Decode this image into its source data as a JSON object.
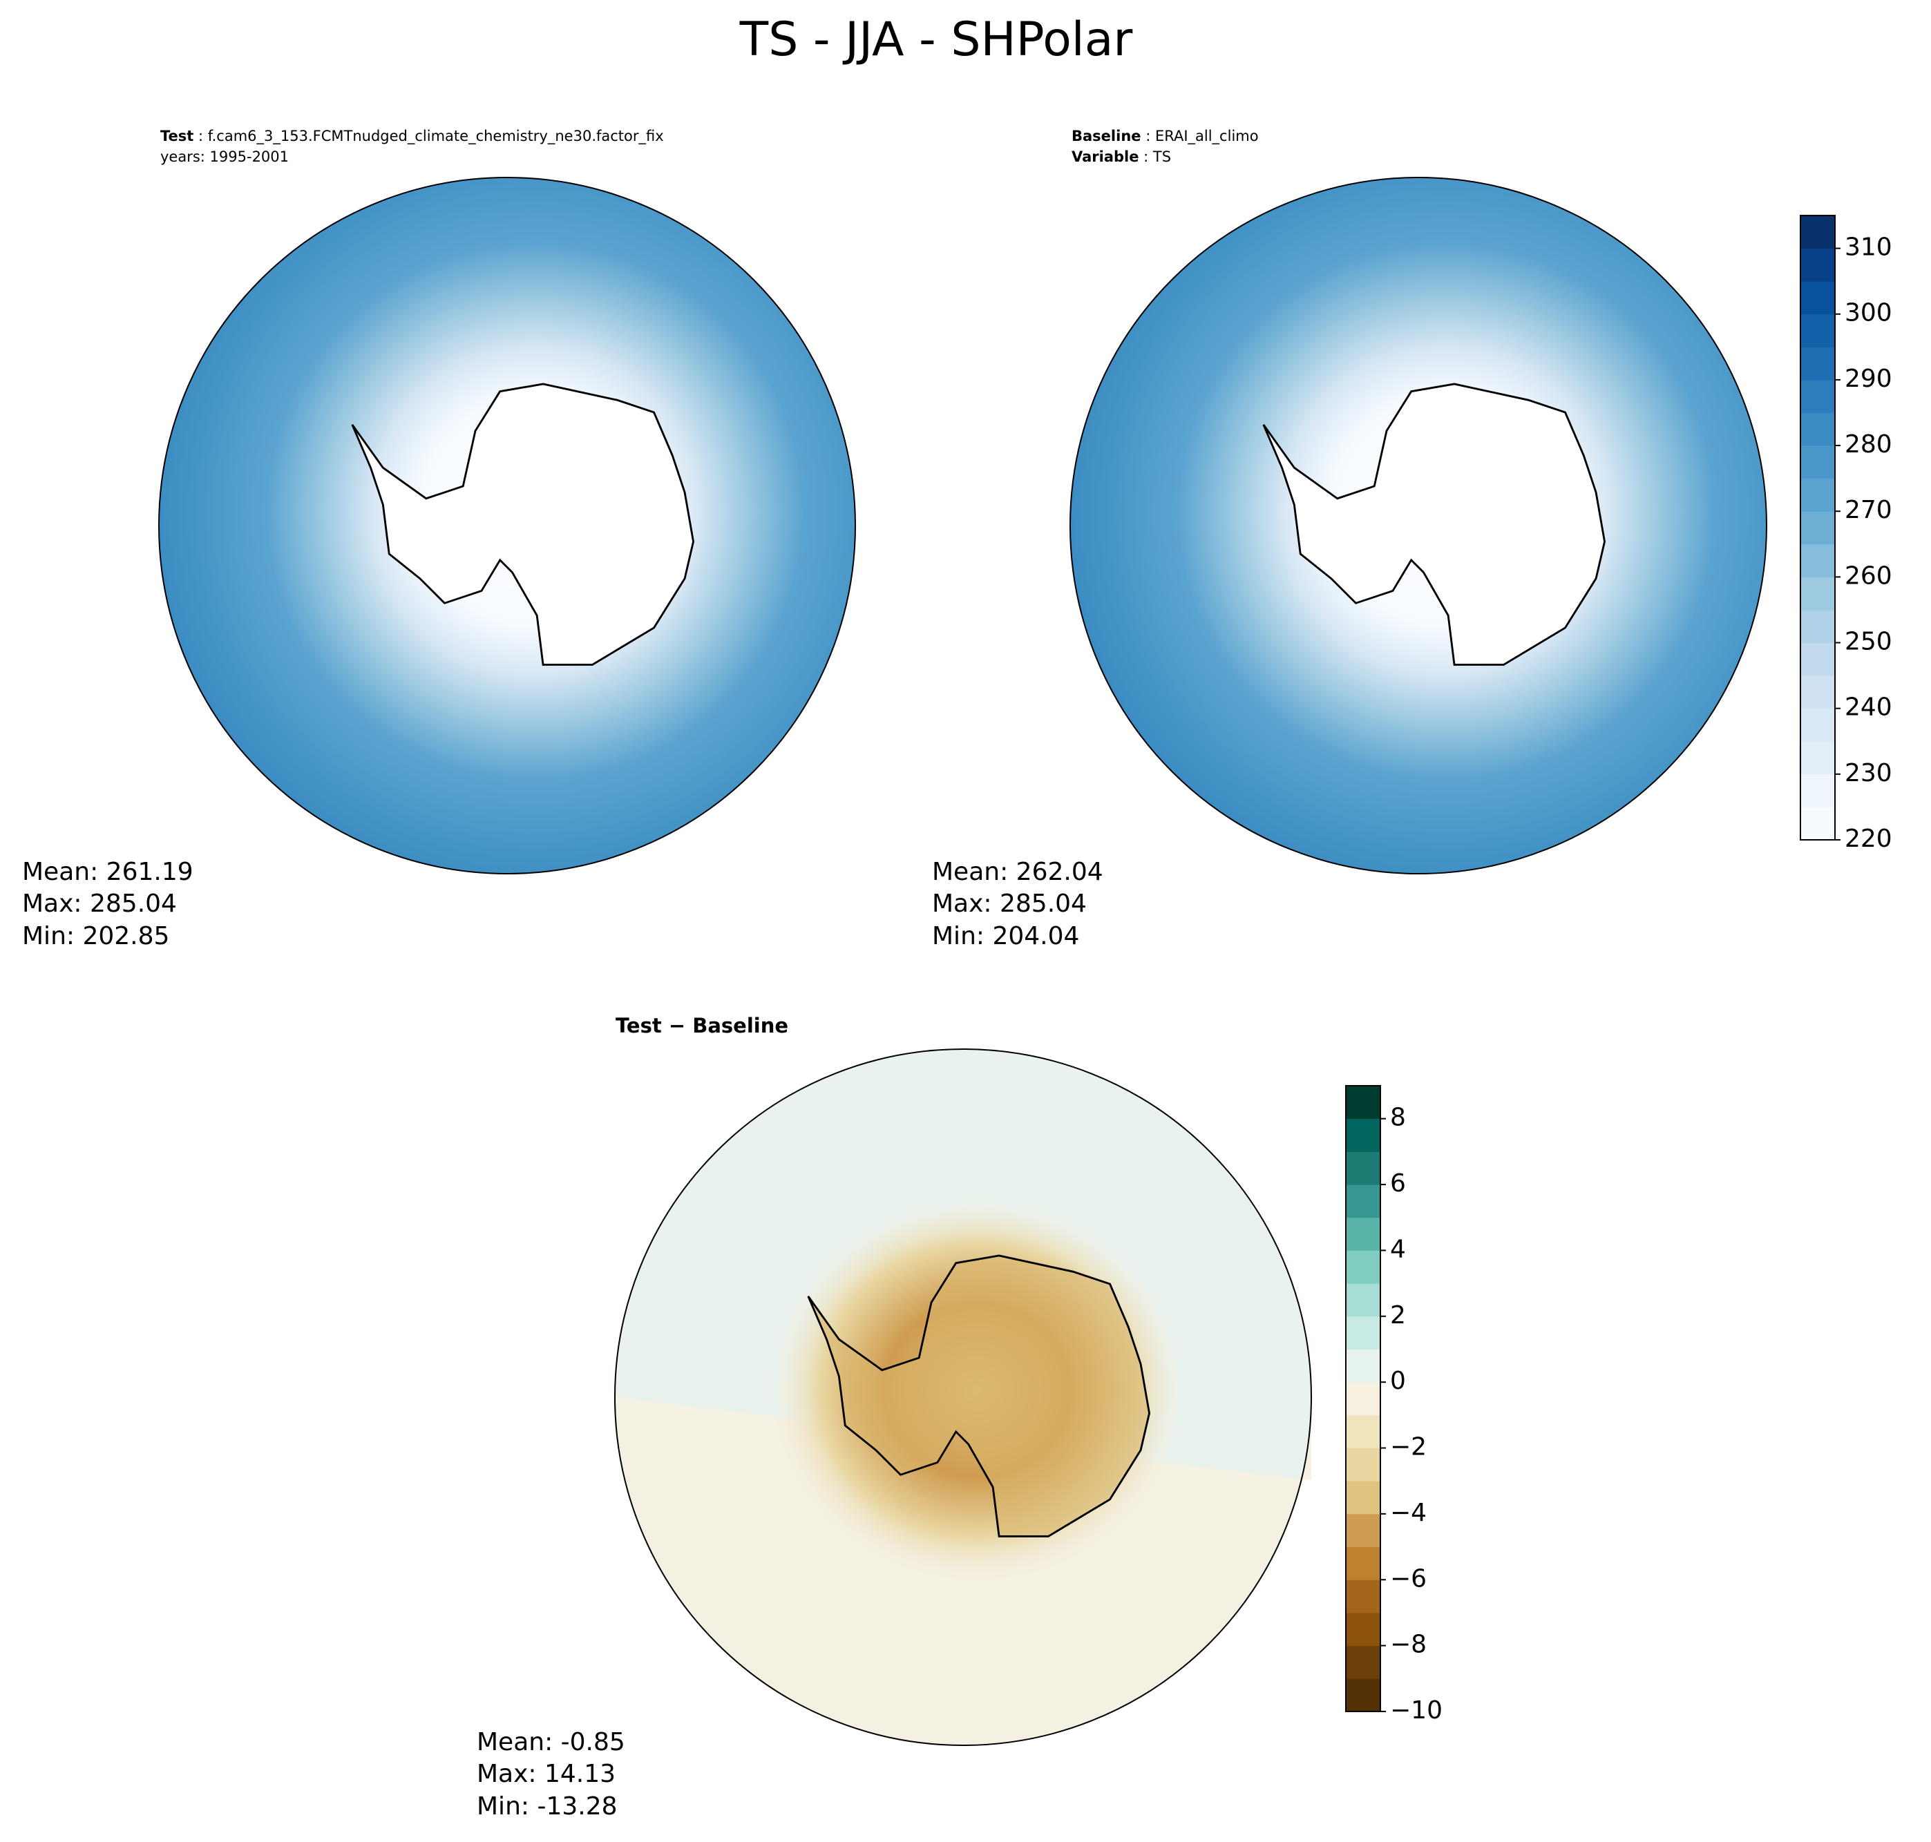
{
  "title": "TS - JJA - SHPolar",
  "panels": [
    {
      "key": "Test",
      "value": "f.cam6_3_153.FCMTnudged_climate_chemistry_ne30.factor_fix",
      "line2": "years: 1995-2001",
      "stats": [
        "Mean: 261.19",
        "Max: 285.04",
        "Min: 202.85"
      ]
    },
    {
      "key": "Baseline",
      "value": "ERAI_all_climo",
      "key2": "Variable",
      "value2": "TS",
      "stats": [
        "Mean: 262.04",
        "Max: 285.04",
        "Min: 204.04"
      ]
    },
    {
      "heading": "Test − Baseline",
      "stats": [
        "Mean: -0.85",
        "Max: 14.13",
        "Min: -13.28"
      ]
    }
  ],
  "colorbars": [
    {
      "lim": [
        220,
        315
      ],
      "colors": [
        "#f7fbff",
        "#eef5fc",
        "#e3eef9",
        "#d9e8f5",
        "#cfe1f2",
        "#c1d9ed",
        "#b0d2e8",
        "#9ecae1",
        "#87bddc",
        "#6daed5",
        "#5ca4d0",
        "#4a98c9",
        "#3a8bc2",
        "#2c7dbb",
        "#1f6eb3",
        "#1361a9",
        "#08519c",
        "#08418a",
        "#08306b"
      ],
      "ticks": [
        220,
        230,
        240,
        250,
        260,
        270,
        280,
        290,
        300,
        310
      ]
    },
    {
      "lim": [
        -10,
        9
      ],
      "colors": [
        "#543005",
        "#6d3f0a",
        "#8c510a",
        "#a5661b",
        "#bf812d",
        "#cf9c51",
        "#dfc27d",
        "#e8d59f",
        "#f1e4bd",
        "#f5f0e0",
        "#e6f2ef",
        "#c7eae5",
        "#a8ddd4",
        "#80cdc1",
        "#5ab4a9",
        "#35978f",
        "#1d7d74",
        "#01665e",
        "#003c30"
      ],
      "ticks": [
        {
          "value": -10,
          "label": "−10"
        },
        {
          "value": -8,
          "label": "−8"
        },
        {
          "value": -6,
          "label": "−6"
        },
        {
          "value": -4,
          "label": "−4"
        },
        {
          "value": -2,
          "label": "−2"
        },
        0,
        2,
        4,
        6,
        8
      ]
    }
  ]
}
